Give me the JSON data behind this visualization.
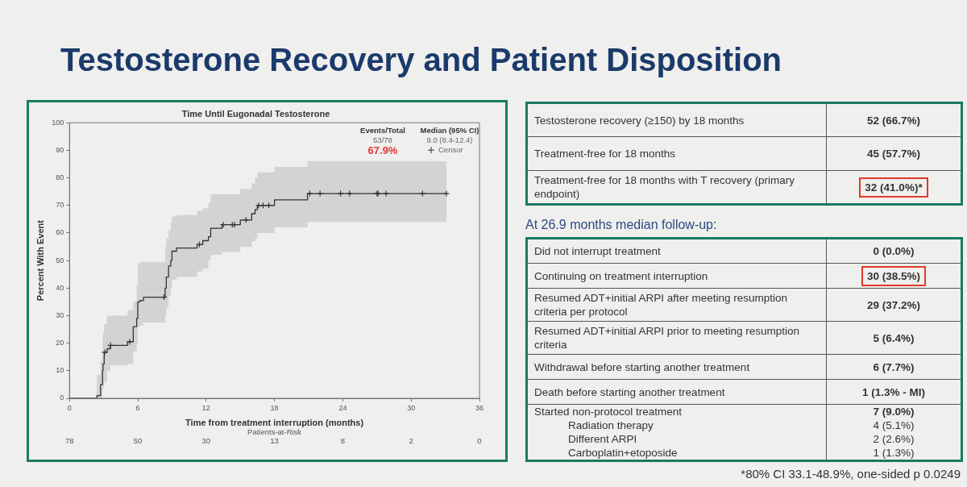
{
  "chart_data": [
    {
      "type": "step",
      "title": "Testosterone Recovery and Patient Disposition",
      "subtitle": "Time Until Eugonadal Testosterone",
      "xlabel": "Time from treatment interruption (months)",
      "ylabel": "Percent With Event",
      "xlim": [
        0,
        36
      ],
      "xticks": [
        0,
        6,
        12,
        18,
        24,
        30,
        36
      ],
      "ylim": [
        0,
        100
      ],
      "yticks": [
        0,
        10,
        20,
        30,
        40,
        50,
        60,
        70,
        80,
        90,
        100
      ],
      "grid": false,
      "legend": "top right",
      "series": [
        {
          "type": "step",
          "color": "#333333",
          "x": [
            0,
            2.4,
            2.73,
            2.9,
            2.95,
            3.05,
            3.3,
            3.6,
            5.1,
            5.6,
            5.9,
            6.0,
            6.2,
            6.5,
            8.4,
            8.5,
            8.7,
            8.9,
            9.0,
            9.4,
            11.2,
            11.7,
            12.2,
            12.4,
            13.4,
            15.0,
            16.0,
            16.3,
            16.5,
            18.0,
            20.9,
            33.1
          ],
          "values": [
            0,
            1,
            5,
            10,
            12.5,
            16.7,
            18,
            19.2,
            20.5,
            26,
            29,
            35,
            35.5,
            36.7,
            40,
            44,
            48,
            50,
            53.4,
            54.5,
            55.8,
            57.2,
            58.6,
            61.7,
            63,
            64.7,
            67,
            68.5,
            70,
            72,
            74.3,
            74.3
          ],
          "lower": [
            0,
            0,
            0,
            3,
            4,
            6,
            10,
            12,
            12.5,
            17,
            20,
            26,
            26.5,
            27.5,
            30,
            33,
            37,
            40,
            43,
            44,
            46,
            47,
            50,
            52,
            53,
            55,
            57,
            58,
            60,
            62,
            64,
            64
          ],
          "upper": [
            0,
            8.5,
            13.5,
            22,
            24,
            27,
            30,
            30,
            32,
            35,
            41,
            49,
            49.5,
            49.5,
            55,
            58,
            61,
            64,
            66,
            66.5,
            68,
            69,
            71,
            74,
            74,
            76,
            78,
            80,
            82,
            84,
            86,
            86
          ]
        },
        {
          "type": "scatter",
          "name": "Censor",
          "color": "#333333",
          "marker": "cross",
          "x": [
            3.1,
            3.6,
            5.3,
            8.3,
            11.4,
            13.5,
            14.3,
            14.5,
            15.5,
            16.6,
            17.0,
            17.5,
            21.1,
            22.0,
            23.8,
            24.6,
            27.0,
            27.1,
            27.8,
            31.0,
            33.1
          ],
          "values": [
            16.7,
            19.2,
            20.5,
            36.7,
            55.8,
            63,
            63,
            63,
            64.7,
            70,
            70,
            70,
            74.3,
            74.3,
            74.3,
            74.3,
            74.3,
            74.3,
            74.3,
            74.3,
            74.3
          ]
        }
      ],
      "annotations": [
        "Events/Total",
        "Median (95% CI)",
        "53/78",
        "9.0 (8.4-12.4)",
        "67.9%",
        "Patients-at-Risk",
        "78",
        "50",
        "30",
        "13",
        "8",
        "2",
        "0"
      ]
    },
    {
      "type": "other",
      "subtitle": "At 26.9 months median follow-up:",
      "annotations": [
        "Testosterone recovery (≥150) by 18 months",
        "52 (66.7%)",
        "Treatment-free for 18 months",
        "45 (57.7%)",
        "Treatment-free for 18 months with T recovery (primary endpoint)",
        "32 (41.0%)*",
        "Did not interrupt treatment",
        "0 (0.0%)",
        "Continuing on treatment interruption",
        "30 (38.5%)",
        "Resumed ADT+initial ARPI after meeting resumption criteria per protocol",
        "29 (37.2%)",
        "Resumed ADT+initial ARPI prior to meeting resumption criteria",
        "5 (6.4%)",
        "Withdrawal before starting another treatment",
        "6 (7.7%)",
        "Death before starting another treatment",
        "1 (1.3% - MI)",
        "Started non-protocol treatment",
        "7 (9.0%)",
        "Radiation therapy",
        "4 (5.1%)",
        "Different ARPI",
        "2 (2.6%)",
        "Carboplatin+etoposide",
        "1 (1.3%)",
        "*80% CI 33.1-48.9%, one-sided p 0.0249"
      ]
    }
  ]
}
